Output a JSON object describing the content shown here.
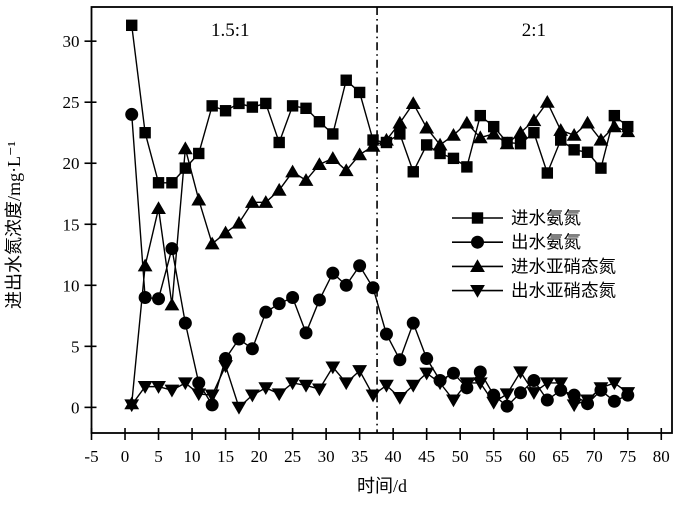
{
  "chart_data": {
    "type": "line",
    "title": "",
    "xlabel": "时间/d",
    "ylabel": "进出水氮浓度/mg·L⁻¹",
    "xlim": [
      -5,
      81.6
    ],
    "ylim": [
      -2.1,
      32.8
    ],
    "xticks": [
      -5,
      0,
      5,
      10,
      15,
      20,
      25,
      30,
      35,
      40,
      45,
      50,
      55,
      60,
      65,
      70,
      75,
      80
    ],
    "yticks": [
      0,
      5,
      10,
      15,
      20,
      25,
      30
    ],
    "grid": false,
    "legend_position": "middle-right",
    "axis_color": "#000000",
    "background_color": "#ffffff",
    "x": [
      1,
      3,
      5,
      7,
      9,
      11,
      13,
      15,
      17,
      19,
      21,
      23,
      25,
      27,
      29,
      31,
      33,
      35,
      37,
      39,
      41,
      43,
      45,
      47,
      49,
      51,
      53,
      55,
      57,
      59,
      61,
      63,
      65,
      67,
      69,
      71,
      73,
      75
    ],
    "series": [
      {
        "id": "influent-ammonia-nitrogen",
        "name": "进水氨氮",
        "marker": "square",
        "color": "#000000",
        "values": [
          31.3,
          22.5,
          18.4,
          18.4,
          19.6,
          20.8,
          24.7,
          24.3,
          24.9,
          24.6,
          24.9,
          21.7,
          24.7,
          24.5,
          23.4,
          22.4,
          26.8,
          25.8,
          21.9,
          21.7,
          22.4,
          19.3,
          21.5,
          20.8,
          20.4,
          19.7,
          23.9,
          23.0,
          21.7,
          21.6,
          22.5,
          19.2,
          21.9,
          21.1,
          20.9,
          19.6,
          23.9,
          23.0
        ]
      },
      {
        "id": "effluent-ammonia-nitrogen",
        "name": "出水氨氮",
        "marker": "circle",
        "color": "#000000",
        "values": [
          24.0,
          9.0,
          8.9,
          13.0,
          6.9,
          2.0,
          0.2,
          4.0,
          5.6,
          4.8,
          7.8,
          8.5,
          9.0,
          6.1,
          8.8,
          11.0,
          10.0,
          11.6,
          9.8,
          6.0,
          3.9,
          6.9,
          4.0,
          2.2,
          2.8,
          1.6,
          2.9,
          1.0,
          0.1,
          1.2,
          2.2,
          0.6,
          1.4,
          1.0,
          0.3,
          1.4,
          0.5,
          1.0
        ]
      },
      {
        "id": "influent-nitrite-nitrogen",
        "name": "进水亚硝态氮",
        "marker": "triangle-up",
        "color": "#000000",
        "values": [
          0.3,
          11.6,
          16.3,
          8.4,
          21.2,
          17.0,
          13.4,
          14.3,
          15.1,
          16.8,
          16.8,
          17.8,
          19.3,
          18.6,
          19.9,
          20.4,
          19.4,
          20.7,
          21.4,
          21.9,
          23.3,
          24.9,
          22.9,
          21.5,
          22.3,
          23.3,
          22.1,
          22.4,
          21.6,
          22.5,
          23.5,
          25.0,
          22.7,
          22.3,
          23.3,
          21.9,
          23.0,
          22.6
        ]
      },
      {
        "id": "effluent-nitrite-nitrogen",
        "name": "出水亚硝态氮",
        "marker": "triangle-down",
        "color": "#000000",
        "values": [
          0.2,
          1.7,
          1.7,
          1.4,
          2.0,
          1.1,
          1.0,
          3.4,
          0.0,
          1.0,
          1.6,
          1.1,
          2.0,
          1.8,
          1.5,
          3.3,
          2.0,
          3.0,
          1.0,
          1.8,
          0.8,
          1.8,
          2.8,
          2.0,
          0.6,
          2.0,
          2.0,
          0.4,
          1.1,
          2.9,
          1.2,
          2.0,
          2.0,
          0.2,
          0.6,
          1.6,
          2.0,
          1.2
        ]
      }
    ],
    "annotations": [
      {
        "id": "phase-1-ratio",
        "text": "1.5:1",
        "x": 15.7,
        "y": 30.9
      },
      {
        "id": "phase-2-ratio",
        "text": "2:1",
        "x": 61.0,
        "y": 30.9
      }
    ],
    "vline": {
      "x": 37.6,
      "style": "dash-dot",
      "color": "#000000"
    }
  }
}
